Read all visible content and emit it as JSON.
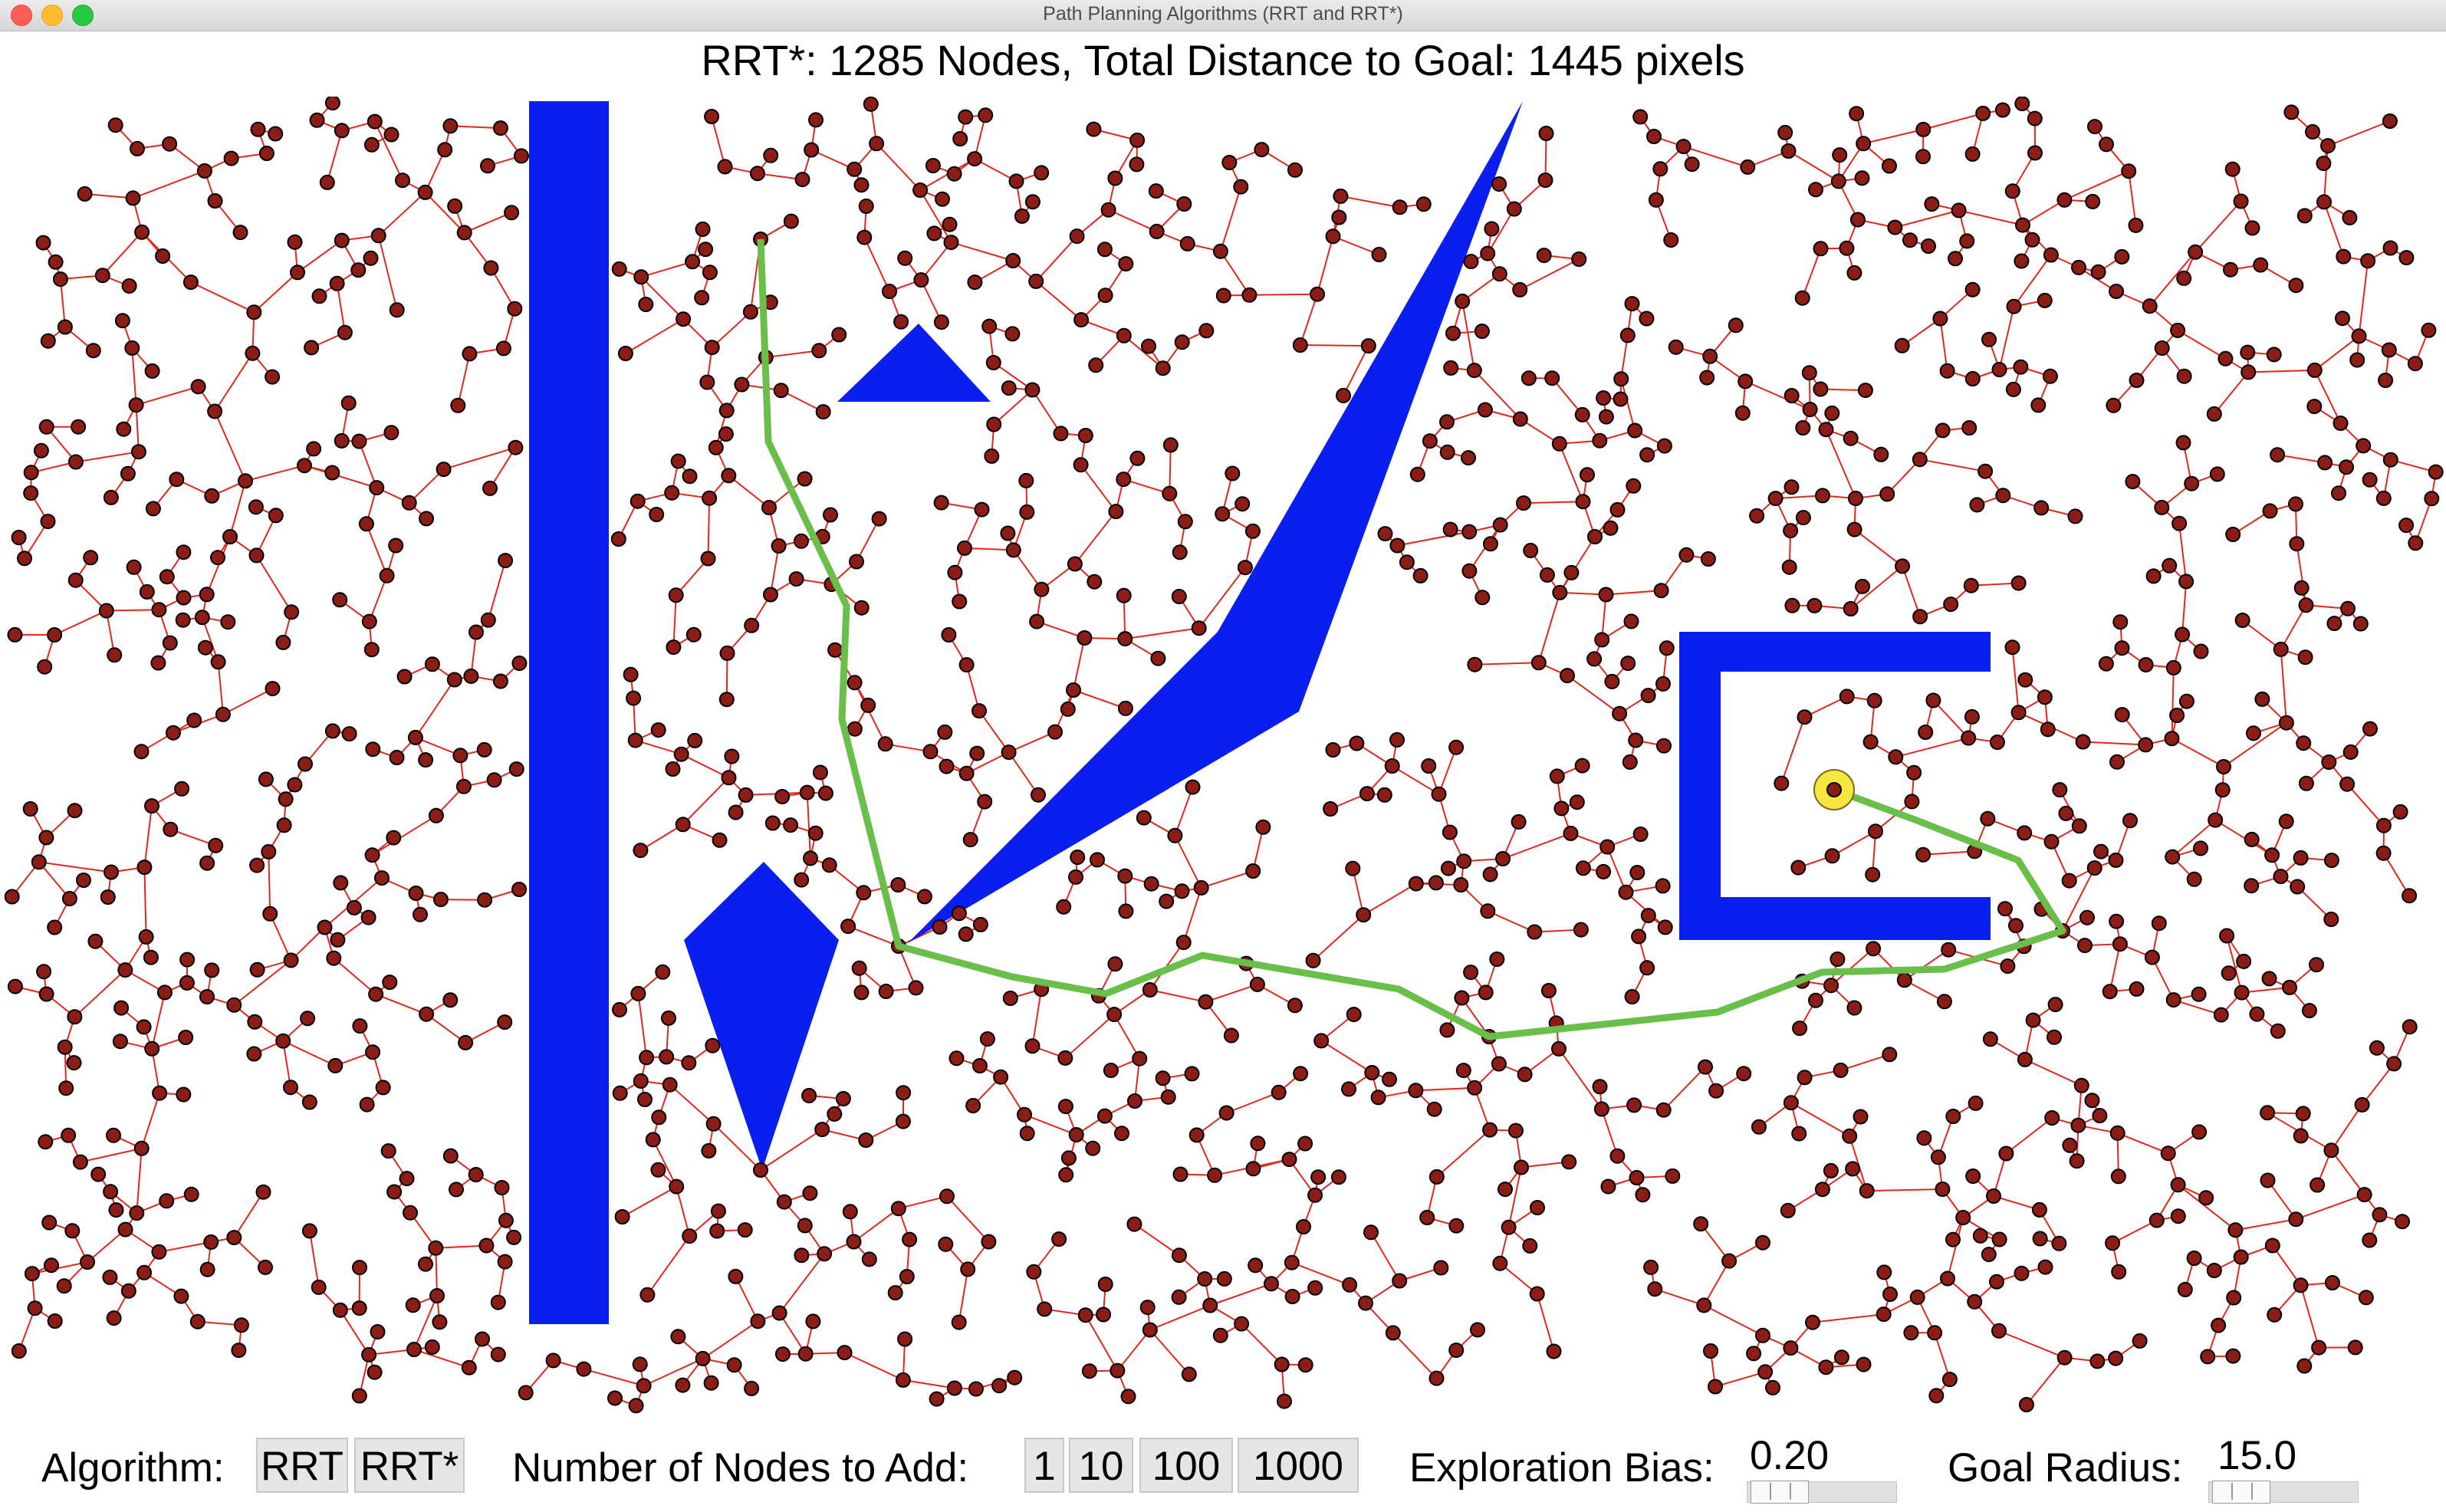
{
  "window": {
    "title": "Path Planning Algorithms (RRT and RRT*)"
  },
  "status": {
    "text": "RRT*: 1285 Nodes, Total Distance to Goal: 1445 pixels"
  },
  "controls": {
    "algorithm_label": "Algorithm:",
    "algorithm_buttons": [
      "RRT",
      "RRT*"
    ],
    "nodes_label": "Number of Nodes to Add:",
    "nodes_buttons": [
      "1",
      "10",
      "100",
      "1000"
    ],
    "bias_label": "Exploration Bias:",
    "bias_value": "0.20",
    "radius_label": "Goal Radius:",
    "radius_value": "15.0"
  },
  "colors": {
    "obstacle": "#0a1ef0",
    "edge": "#e0281e",
    "node_fill": "#8b1c16",
    "path": "#6abf4b",
    "goal": "#f6e641"
  },
  "icons": [
    "close-icon",
    "minimize-icon",
    "maximize-icon"
  ]
}
